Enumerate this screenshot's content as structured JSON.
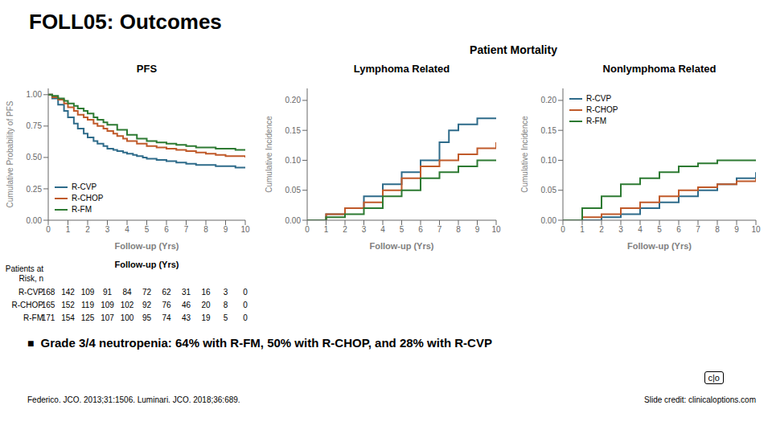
{
  "title": "FOLL05: Outcomes",
  "annotations": [
    "Patient Mortality",
    "■",
    "Grade 3/4 neutropenia: 64% with R-FM, 50% with R-CHOP, and 28% with R-CVP",
    "Federico. JCO. 2013;31:1506. Luminari. JCO. 2018;36:689.",
    "Slide credit: clinicaloptions.com",
    "c|o"
  ],
  "chart_data": [
    {
      "type": "line",
      "line_style": "step",
      "title": "PFS",
      "x_label": "Follow-up (Yrs)",
      "y_label": "Cumulative Probability of PFS",
      "xlim": [
        0,
        10
      ],
      "xticks": [
        0,
        1,
        2,
        3,
        4,
        5,
        6,
        7,
        8,
        9,
        10
      ],
      "ylim": [
        0,
        1.05
      ],
      "yticks": [
        {
          "value": 0,
          "label": "0.00"
        },
        {
          "value": 0.25,
          "label": "0.25"
        },
        {
          "value": 0.5,
          "label": "0.50"
        },
        {
          "value": 0.75,
          "label": "0.75"
        },
        {
          "value": 1.0,
          "label": "1.00"
        }
      ],
      "grid": false,
      "legend": "lower left",
      "series": [
        {
          "name": "R-CVP",
          "color": "#2e6b8a",
          "x": [
            0,
            0.2,
            0.5,
            0.8,
            1.0,
            1.3,
            1.5,
            1.8,
            2.0,
            2.3,
            2.5,
            2.8,
            3.0,
            3.3,
            3.5,
            3.8,
            4.0,
            4.3,
            4.5,
            4.8,
            5.0,
            5.5,
            6.0,
            6.5,
            7.0,
            7.5,
            8.0,
            8.5,
            9.0,
            9.5,
            10.0
          ],
          "values": [
            1.0,
            0.97,
            0.92,
            0.87,
            0.82,
            0.77,
            0.73,
            0.69,
            0.66,
            0.63,
            0.61,
            0.59,
            0.57,
            0.56,
            0.55,
            0.54,
            0.53,
            0.52,
            0.51,
            0.5,
            0.49,
            0.48,
            0.47,
            0.46,
            0.45,
            0.44,
            0.44,
            0.43,
            0.43,
            0.42,
            0.42
          ]
        },
        {
          "name": "R-CHOP",
          "color": "#c05a2a",
          "x": [
            0,
            0.2,
            0.5,
            0.8,
            1.0,
            1.3,
            1.5,
            1.8,
            2.0,
            2.3,
            2.5,
            2.8,
            3.0,
            3.3,
            3.5,
            3.8,
            4.0,
            4.5,
            5.0,
            5.5,
            6.0,
            6.5,
            7.0,
            7.5,
            8.0,
            8.5,
            9.0,
            9.5,
            10.0
          ],
          "values": [
            1.0,
            0.98,
            0.96,
            0.93,
            0.9,
            0.87,
            0.84,
            0.82,
            0.8,
            0.77,
            0.75,
            0.73,
            0.71,
            0.69,
            0.67,
            0.65,
            0.63,
            0.61,
            0.59,
            0.58,
            0.57,
            0.56,
            0.55,
            0.54,
            0.53,
            0.52,
            0.51,
            0.51,
            0.5
          ]
        },
        {
          "name": "R-FM",
          "color": "#2d7a32",
          "x": [
            0,
            0.2,
            0.5,
            0.8,
            1.0,
            1.3,
            1.5,
            1.8,
            2.0,
            2.3,
            2.5,
            2.8,
            3.0,
            3.5,
            4.0,
            4.5,
            5.0,
            5.5,
            6.0,
            6.5,
            7.0,
            7.5,
            8.0,
            8.5,
            9.0,
            9.5,
            10.0
          ],
          "values": [
            1.0,
            0.99,
            0.97,
            0.95,
            0.93,
            0.91,
            0.89,
            0.87,
            0.85,
            0.82,
            0.8,
            0.78,
            0.76,
            0.72,
            0.68,
            0.65,
            0.63,
            0.62,
            0.61,
            0.6,
            0.59,
            0.58,
            0.58,
            0.57,
            0.57,
            0.56,
            0.56
          ]
        }
      ],
      "patients_at_risk": {
        "title": "Follow-up (Yrs)",
        "header": "Patients at\nRisk, n",
        "rows": [
          {
            "name": "R-CVP",
            "values": [
              168,
              142,
              109,
              91,
              84,
              72,
              62,
              31,
              16,
              3,
              0
            ]
          },
          {
            "name": "R-CHOP",
            "values": [
              165,
              152,
              119,
              109,
              102,
              92,
              76,
              46,
              20,
              8,
              0
            ]
          },
          {
            "name": "R-FM",
            "values": [
              171,
              154,
              125,
              107,
              100,
              95,
              74,
              43,
              19,
              5,
              0
            ]
          }
        ]
      }
    },
    {
      "type": "line",
      "line_style": "step",
      "title": "Lymphoma Related",
      "x_label": "Follow-up (Yrs)",
      "y_label": "Cumulative Incidence",
      "xlim": [
        0,
        10
      ],
      "xticks": [
        0,
        1,
        2,
        3,
        4,
        5,
        6,
        7,
        8,
        9,
        10
      ],
      "ylim": [
        0,
        0.22
      ],
      "yticks": [
        {
          "value": 0,
          "label": "0.00"
        },
        {
          "value": 0.05,
          "label": "0.05"
        },
        {
          "value": 0.1,
          "label": "0.10"
        },
        {
          "value": 0.15,
          "label": "0.15"
        },
        {
          "value": 0.2,
          "label": "0.20"
        }
      ],
      "grid": false,
      "series": [
        {
          "name": "R-CVP",
          "color": "#2e6b8a",
          "x": [
            0,
            1,
            2,
            3,
            4,
            5,
            6,
            7,
            7.5,
            8,
            9,
            10
          ],
          "values": [
            0,
            0.01,
            0.02,
            0.04,
            0.06,
            0.08,
            0.1,
            0.13,
            0.15,
            0.16,
            0.17,
            0.17
          ]
        },
        {
          "name": "R-CHOP",
          "color": "#c05a2a",
          "x": [
            0,
            1,
            2,
            3,
            4,
            5,
            6,
            7,
            8,
            9,
            10
          ],
          "values": [
            0,
            0.01,
            0.02,
            0.03,
            0.05,
            0.07,
            0.09,
            0.1,
            0.11,
            0.12,
            0.13
          ]
        },
        {
          "name": "R-FM",
          "color": "#2d7a32",
          "x": [
            0,
            1,
            2,
            3,
            4,
            5,
            6,
            7,
            8,
            9,
            10
          ],
          "values": [
            0,
            0.005,
            0.01,
            0.02,
            0.04,
            0.05,
            0.07,
            0.08,
            0.09,
            0.1,
            0.1
          ]
        }
      ]
    },
    {
      "type": "line",
      "line_style": "step",
      "title": "Nonlymphoma Related",
      "x_label": "Follow-up (Yrs)",
      "y_label": "Cumulative Incidence",
      "xlim": [
        0,
        10
      ],
      "xticks": [
        0,
        1,
        2,
        3,
        4,
        5,
        6,
        7,
        8,
        9,
        10
      ],
      "ylim": [
        0,
        0.22
      ],
      "yticks": [
        {
          "value": 0,
          "label": "0.00"
        },
        {
          "value": 0.05,
          "label": "0.05"
        },
        {
          "value": 0.1,
          "label": "0.10"
        },
        {
          "value": 0.15,
          "label": "0.15"
        },
        {
          "value": 0.2,
          "label": "0.20"
        }
      ],
      "grid": false,
      "legend": "upper left",
      "series": [
        {
          "name": "R-CVP",
          "color": "#2e6b8a",
          "x": [
            0,
            1,
            2,
            3,
            4,
            5,
            6,
            7,
            8,
            9,
            10
          ],
          "values": [
            0,
            0.0,
            0.005,
            0.01,
            0.02,
            0.03,
            0.04,
            0.05,
            0.06,
            0.07,
            0.08
          ]
        },
        {
          "name": "R-CHOP",
          "color": "#c05a2a",
          "x": [
            0,
            1,
            2,
            3,
            4,
            5,
            6,
            7,
            8,
            9,
            10
          ],
          "values": [
            0,
            0.005,
            0.01,
            0.02,
            0.03,
            0.04,
            0.05,
            0.055,
            0.06,
            0.065,
            0.07
          ]
        },
        {
          "name": "R-FM",
          "color": "#2d7a32",
          "x": [
            0,
            1,
            2,
            3,
            4,
            5,
            6,
            7,
            8,
            9,
            10
          ],
          "values": [
            0,
            0.02,
            0.04,
            0.06,
            0.07,
            0.08,
            0.09,
            0.095,
            0.1,
            0.1,
            0.1
          ]
        }
      ]
    }
  ]
}
